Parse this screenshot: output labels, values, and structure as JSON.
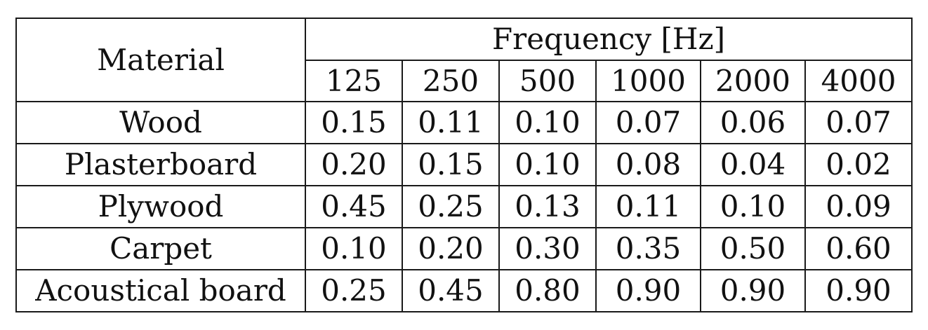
{
  "table": {
    "header": {
      "material_label": "Material",
      "group_label": "Frequency [Hz]",
      "frequencies": [
        "125",
        "250",
        "500",
        "1000",
        "2000",
        "4000"
      ]
    },
    "rows": [
      {
        "material": "Wood",
        "values": [
          "0.15",
          "0.11",
          "0.10",
          "0.07",
          "0.06",
          "0.07"
        ]
      },
      {
        "material": "Plasterboard",
        "values": [
          "0.20",
          "0.15",
          "0.10",
          "0.08",
          "0.04",
          "0.02"
        ]
      },
      {
        "material": "Plywood",
        "values": [
          "0.45",
          "0.25",
          "0.13",
          "0.11",
          "0.10",
          "0.09"
        ]
      },
      {
        "material": "Carpet",
        "values": [
          "0.10",
          "0.20",
          "0.30",
          "0.35",
          "0.50",
          "0.60"
        ]
      },
      {
        "material": "Acoustical board",
        "values": [
          "0.25",
          "0.45",
          "0.80",
          "0.90",
          "0.90",
          "0.90"
        ]
      }
    ]
  }
}
